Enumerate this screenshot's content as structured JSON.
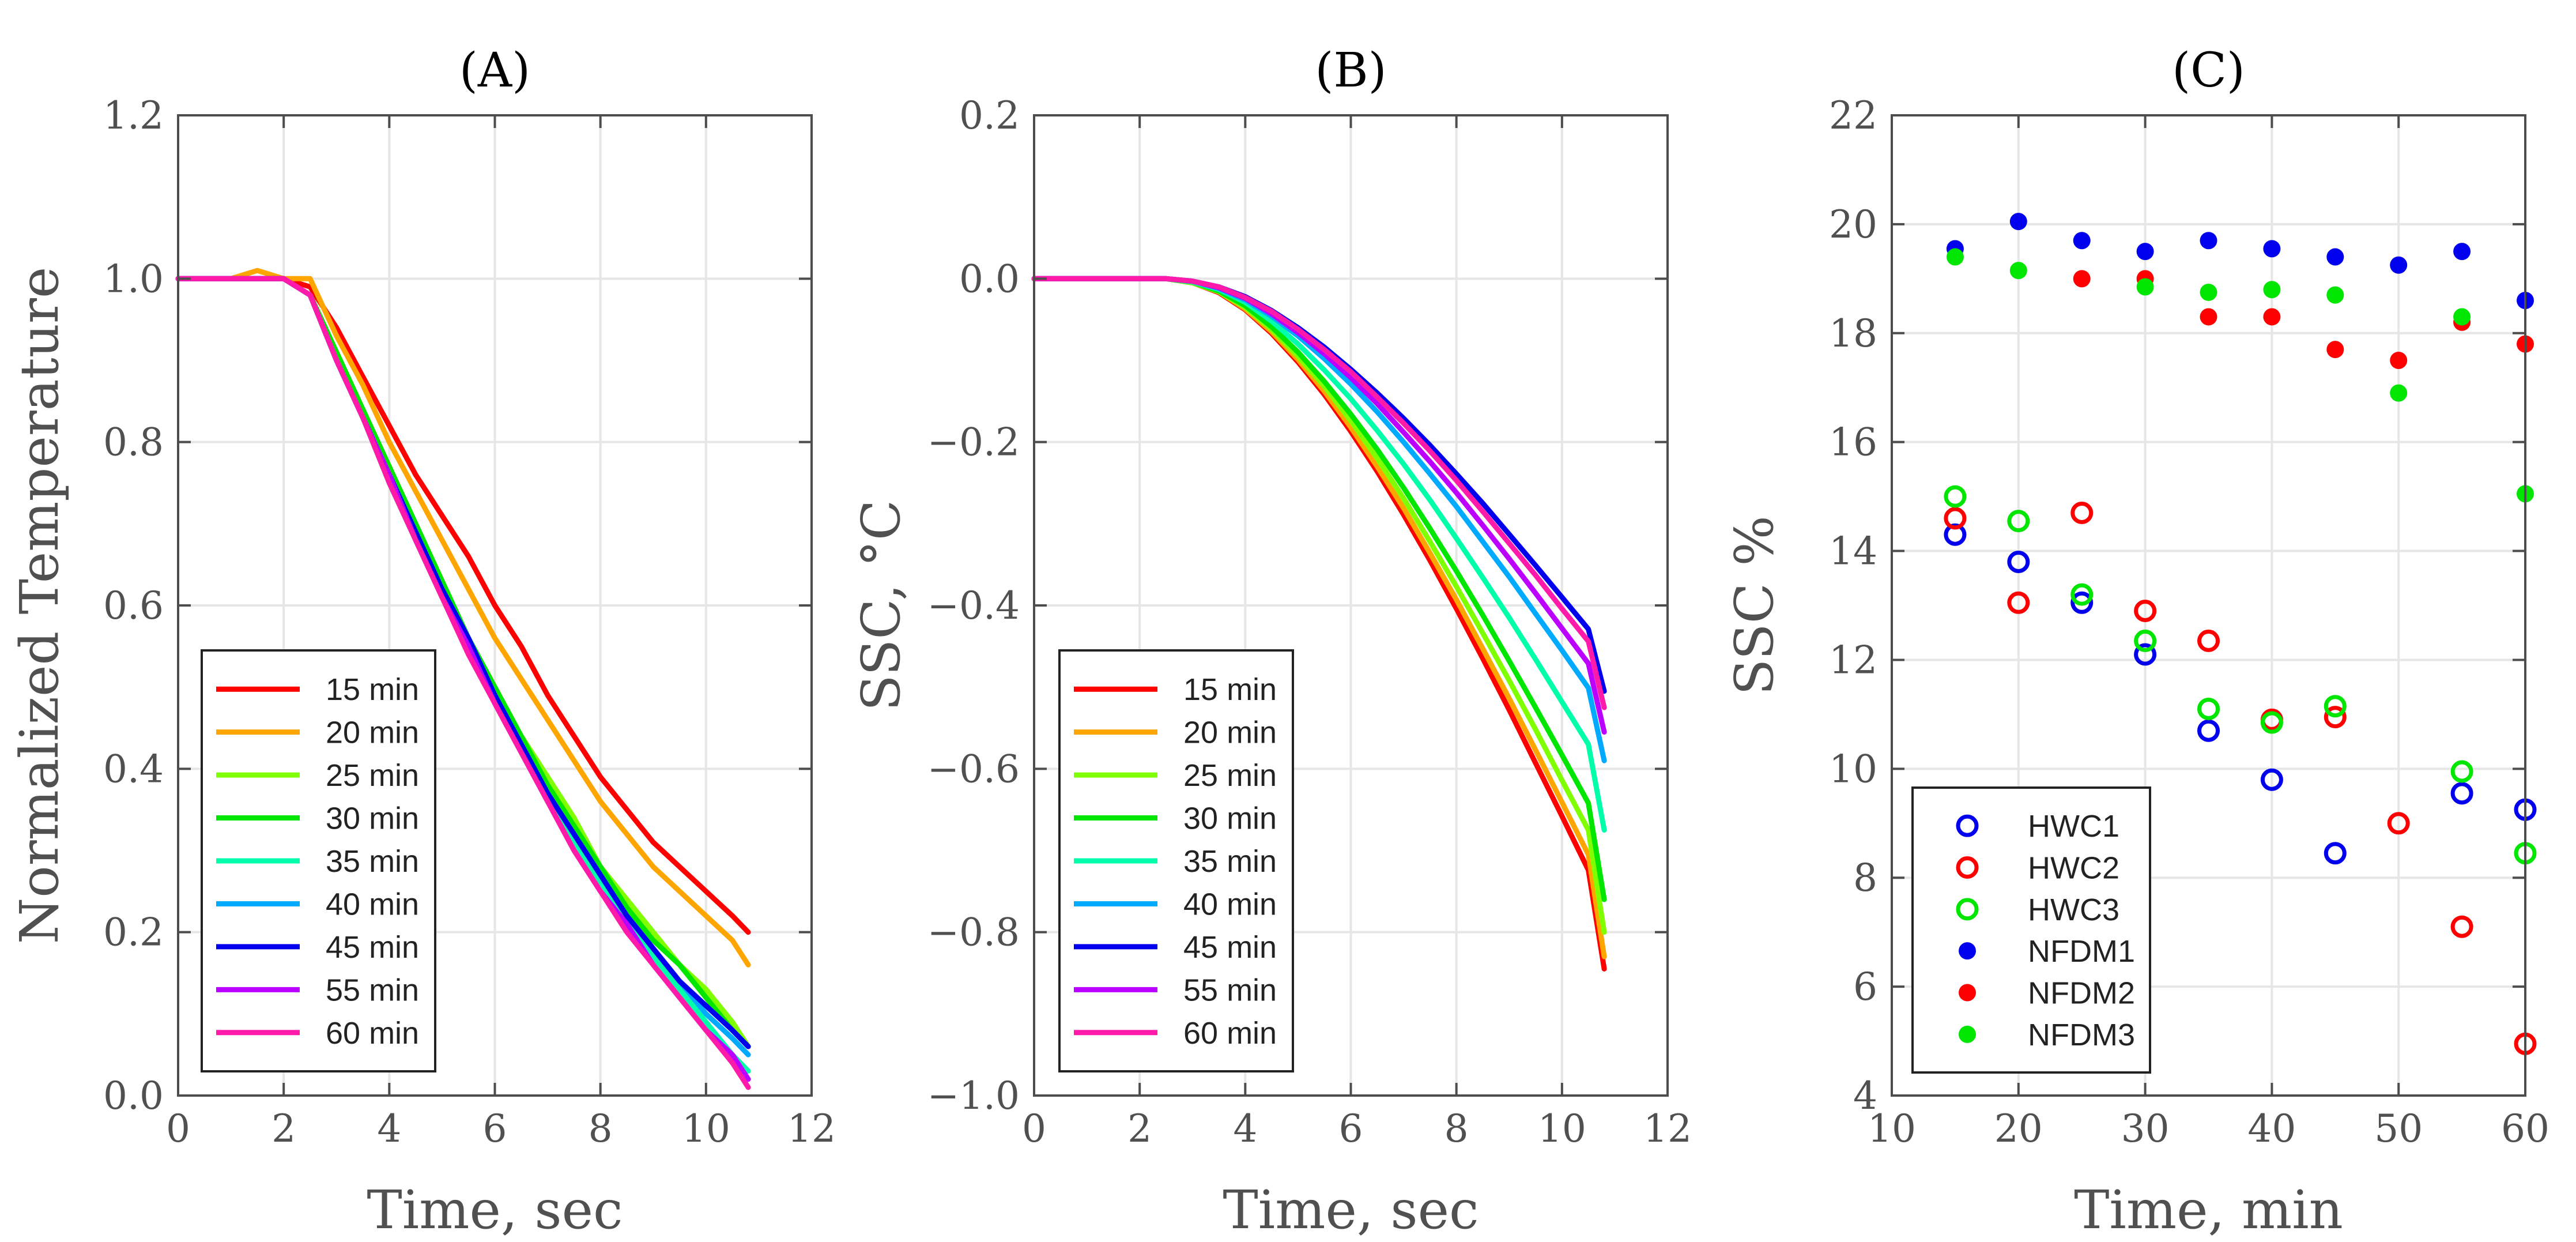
{
  "chart_data": [
    {
      "type": "line",
      "title": "(A)",
      "xlabel": "Time, sec",
      "ylabel": "Normalized Temperature",
      "xlim": [
        0,
        12
      ],
      "ylim": [
        0,
        1.2
      ],
      "xticks": [
        0,
        2,
        4,
        6,
        8,
        10,
        12
      ],
      "yticks": [
        0.0,
        0.2,
        0.4,
        0.6,
        0.8,
        1.0,
        1.2
      ],
      "ytick_labels": [
        "0.0",
        "0.2",
        "0.4",
        "0.6",
        "0.8",
        "1.0",
        "1.2"
      ],
      "grid": true,
      "legend_position": "bottom-left",
      "x": [
        0,
        0.5,
        1,
        1.5,
        2,
        2.5,
        3,
        3.5,
        4,
        4.5,
        5,
        5.5,
        6,
        6.5,
        7,
        7.5,
        8,
        8.5,
        9,
        9.5,
        10,
        10.5,
        10.8
      ],
      "series": [
        {
          "name": "15 min",
          "color": "#ff0000",
          "values": [
            1.0,
            1.0,
            1.0,
            1.0,
            1.0,
            0.99,
            0.94,
            0.88,
            0.82,
            0.76,
            0.71,
            0.66,
            0.6,
            0.55,
            0.49,
            0.44,
            0.39,
            0.35,
            0.31,
            0.28,
            0.25,
            0.22,
            0.2
          ]
        },
        {
          "name": "20 min",
          "color": "#ffa500",
          "values": [
            1.0,
            1.0,
            1.0,
            1.01,
            1.0,
            1.0,
            0.93,
            0.87,
            0.8,
            0.74,
            0.68,
            0.62,
            0.56,
            0.51,
            0.46,
            0.41,
            0.36,
            0.32,
            0.28,
            0.25,
            0.22,
            0.19,
            0.16
          ]
        },
        {
          "name": "25 min",
          "color": "#80ff00",
          "values": [
            1.0,
            1.0,
            1.0,
            1.0,
            1.0,
            0.98,
            0.91,
            0.84,
            0.77,
            0.7,
            0.63,
            0.56,
            0.5,
            0.44,
            0.39,
            0.34,
            0.28,
            0.24,
            0.2,
            0.16,
            0.13,
            0.09,
            0.06
          ]
        },
        {
          "name": "30 min",
          "color": "#00e600",
          "values": [
            1.0,
            1.0,
            1.0,
            1.0,
            1.0,
            0.98,
            0.91,
            0.84,
            0.77,
            0.7,
            0.63,
            0.56,
            0.5,
            0.44,
            0.38,
            0.33,
            0.28,
            0.23,
            0.19,
            0.16,
            0.12,
            0.08,
            0.06
          ]
        },
        {
          "name": "35 min",
          "color": "#00ffaa",
          "values": [
            1.0,
            1.0,
            1.0,
            1.0,
            1.0,
            0.98,
            0.9,
            0.83,
            0.75,
            0.68,
            0.61,
            0.55,
            0.48,
            0.42,
            0.36,
            0.31,
            0.26,
            0.21,
            0.17,
            0.13,
            0.09,
            0.05,
            0.03
          ]
        },
        {
          "name": "40 min",
          "color": "#00aaff",
          "values": [
            1.0,
            1.0,
            1.0,
            1.0,
            1.0,
            0.98,
            0.9,
            0.83,
            0.76,
            0.69,
            0.62,
            0.55,
            0.49,
            0.43,
            0.37,
            0.32,
            0.27,
            0.22,
            0.18,
            0.14,
            0.1,
            0.07,
            0.05
          ]
        },
        {
          "name": "45 min",
          "color": "#0000ee",
          "values": [
            1.0,
            1.0,
            1.0,
            1.0,
            1.0,
            0.98,
            0.9,
            0.83,
            0.76,
            0.69,
            0.62,
            0.56,
            0.49,
            0.43,
            0.37,
            0.32,
            0.27,
            0.22,
            0.18,
            0.14,
            0.11,
            0.08,
            0.06
          ]
        },
        {
          "name": "55 min",
          "color": "#bb00ff",
          "values": [
            1.0,
            1.0,
            1.0,
            1.0,
            1.0,
            0.98,
            0.9,
            0.83,
            0.76,
            0.68,
            0.61,
            0.55,
            0.48,
            0.42,
            0.36,
            0.3,
            0.25,
            0.21,
            0.16,
            0.12,
            0.08,
            0.05,
            0.02
          ]
        },
        {
          "name": "60 min",
          "color": "#ff1aaa",
          "values": [
            1.0,
            1.0,
            1.0,
            1.0,
            1.0,
            0.98,
            0.9,
            0.83,
            0.75,
            0.68,
            0.61,
            0.54,
            0.48,
            0.42,
            0.36,
            0.3,
            0.25,
            0.2,
            0.16,
            0.12,
            0.08,
            0.04,
            0.01
          ]
        }
      ]
    },
    {
      "type": "line",
      "title": "(B)",
      "xlabel": "Time, sec",
      "ylabel": "SSC, °C",
      "xlim": [
        0,
        12
      ],
      "ylim": [
        -1.0,
        0.2
      ],
      "xticks": [
        0,
        2,
        4,
        6,
        8,
        10,
        12
      ],
      "yticks": [
        -1.0,
        -0.8,
        -0.6,
        -0.4,
        -0.2,
        0.0,
        0.2
      ],
      "ytick_labels": [
        "−1.0",
        "−0.8",
        "−0.6",
        "−0.4",
        "−0.2",
        "0.0",
        "0.2"
      ],
      "grid": true,
      "legend_position": "bottom-left",
      "x": [
        0,
        1,
        2,
        2.5,
        3,
        3.5,
        4,
        4.5,
        5,
        5.5,
        6,
        6.5,
        7,
        7.5,
        8,
        8.5,
        9,
        9.5,
        10,
        10.5,
        10.8
      ],
      "series": [
        {
          "name": "15 min",
          "color": "#ff0000",
          "values": [
            0,
            0,
            0,
            0,
            -0.005,
            -0.017,
            -0.038,
            -0.067,
            -0.102,
            -0.142,
            -0.187,
            -0.236,
            -0.289,
            -0.345,
            -0.404,
            -0.465,
            -0.528,
            -0.593,
            -0.658,
            -0.724,
            -0.845
          ]
        },
        {
          "name": "20 min",
          "color": "#ffa500",
          "values": [
            0,
            0,
            0,
            0,
            -0.005,
            -0.016,
            -0.037,
            -0.065,
            -0.099,
            -0.138,
            -0.182,
            -0.23,
            -0.281,
            -0.336,
            -0.393,
            -0.453,
            -0.514,
            -0.577,
            -0.641,
            -0.705,
            -0.83
          ]
        },
        {
          "name": "25 min",
          "color": "#80ff00",
          "values": [
            0,
            0,
            0,
            0,
            -0.005,
            -0.016,
            -0.035,
            -0.062,
            -0.095,
            -0.132,
            -0.174,
            -0.22,
            -0.269,
            -0.322,
            -0.377,
            -0.434,
            -0.492,
            -0.552,
            -0.614,
            -0.675,
            -0.8
          ]
        },
        {
          "name": "30 min",
          "color": "#00e600",
          "values": [
            0,
            0,
            0,
            0,
            -0.004,
            -0.015,
            -0.033,
            -0.059,
            -0.09,
            -0.126,
            -0.166,
            -0.209,
            -0.256,
            -0.306,
            -0.358,
            -0.412,
            -0.468,
            -0.525,
            -0.583,
            -0.642,
            -0.76
          ]
        },
        {
          "name": "35 min",
          "color": "#00ffaa",
          "values": [
            0,
            0,
            0,
            0,
            -0.004,
            -0.013,
            -0.029,
            -0.052,
            -0.08,
            -0.112,
            -0.147,
            -0.186,
            -0.227,
            -0.271,
            -0.318,
            -0.366,
            -0.415,
            -0.466,
            -0.518,
            -0.57,
            -0.675
          ]
        },
        {
          "name": "40 min",
          "color": "#00aaff",
          "values": [
            0,
            0,
            0,
            0,
            -0.003,
            -0.012,
            -0.026,
            -0.046,
            -0.07,
            -0.098,
            -0.129,
            -0.163,
            -0.2,
            -0.239,
            -0.279,
            -0.322,
            -0.365,
            -0.41,
            -0.455,
            -0.501,
            -0.59
          ]
        },
        {
          "name": "45 min",
          "color": "#0000ee",
          "values": [
            0,
            0,
            0,
            0,
            -0.003,
            -0.01,
            -0.022,
            -0.039,
            -0.06,
            -0.084,
            -0.111,
            -0.14,
            -0.171,
            -0.204,
            -0.239,
            -0.275,
            -0.313,
            -0.351,
            -0.39,
            -0.429,
            -0.505
          ]
        },
        {
          "name": "55 min",
          "color": "#bb00ff",
          "values": [
            0,
            0,
            0,
            0,
            -0.003,
            -0.011,
            -0.024,
            -0.043,
            -0.066,
            -0.092,
            -0.121,
            -0.153,
            -0.188,
            -0.224,
            -0.262,
            -0.302,
            -0.343,
            -0.385,
            -0.428,
            -0.471,
            -0.555
          ]
        },
        {
          "name": "60 min",
          "color": "#ff1aaa",
          "values": [
            0,
            0,
            0,
            0,
            -0.003,
            -0.01,
            -0.023,
            -0.04,
            -0.062,
            -0.087,
            -0.114,
            -0.145,
            -0.177,
            -0.211,
            -0.247,
            -0.285,
            -0.324,
            -0.363,
            -0.404,
            -0.444,
            -0.525
          ]
        }
      ]
    },
    {
      "type": "scatter",
      "title": "(C)",
      "xlabel": "Time, min",
      "ylabel": "SSC %",
      "xlim": [
        10,
        60
      ],
      "ylim": [
        4,
        22
      ],
      "xticks": [
        10,
        20,
        30,
        40,
        50,
        60
      ],
      "yticks": [
        4,
        6,
        8,
        10,
        12,
        14,
        16,
        18,
        20,
        22
      ],
      "grid": true,
      "legend_position": "bottom-left",
      "series": [
        {
          "name": "HWC1",
          "marker": "open",
          "color": "#0000ee",
          "x": [
            15,
            20,
            25,
            30,
            35,
            40,
            45,
            55,
            60
          ],
          "y": [
            14.3,
            13.8,
            13.05,
            12.1,
            10.7,
            9.8,
            8.45,
            9.55,
            9.25
          ]
        },
        {
          "name": "HWC2",
          "marker": "open",
          "color": "#ff0000",
          "x": [
            15,
            20,
            25,
            30,
            35,
            40,
            45,
            50,
            55,
            60
          ],
          "y": [
            14.6,
            13.05,
            14.7,
            12.9,
            12.35,
            10.9,
            10.95,
            9.0,
            7.1,
            4.95
          ]
        },
        {
          "name": "HWC3",
          "marker": "open",
          "color": "#00e600",
          "x": [
            15,
            20,
            25,
            30,
            35,
            40,
            45,
            55,
            60
          ],
          "y": [
            15.0,
            14.55,
            13.2,
            12.35,
            11.1,
            10.85,
            11.15,
            9.95,
            8.45
          ]
        },
        {
          "name": "NFDM1",
          "marker": "filled",
          "color": "#0000ee",
          "x": [
            15,
            20,
            25,
            30,
            35,
            40,
            45,
            50,
            55,
            60
          ],
          "y": [
            19.55,
            20.05,
            19.7,
            19.5,
            19.7,
            19.55,
            19.4,
            19.25,
            19.5,
            18.6
          ]
        },
        {
          "name": "NFDM2",
          "marker": "filled",
          "color": "#ff0000",
          "x": [
            25,
            30,
            35,
            40,
            45,
            50,
            55,
            60
          ],
          "y": [
            19.0,
            19.0,
            18.3,
            18.3,
            17.7,
            17.5,
            18.2,
            17.8
          ]
        },
        {
          "name": "NFDM3",
          "marker": "filled",
          "color": "#00e600",
          "x": [
            15,
            20,
            30,
            35,
            40,
            45,
            50,
            55,
            60
          ],
          "y": [
            19.4,
            19.15,
            18.85,
            18.75,
            18.8,
            18.7,
            16.9,
            18.3,
            15.05
          ]
        }
      ]
    }
  ]
}
